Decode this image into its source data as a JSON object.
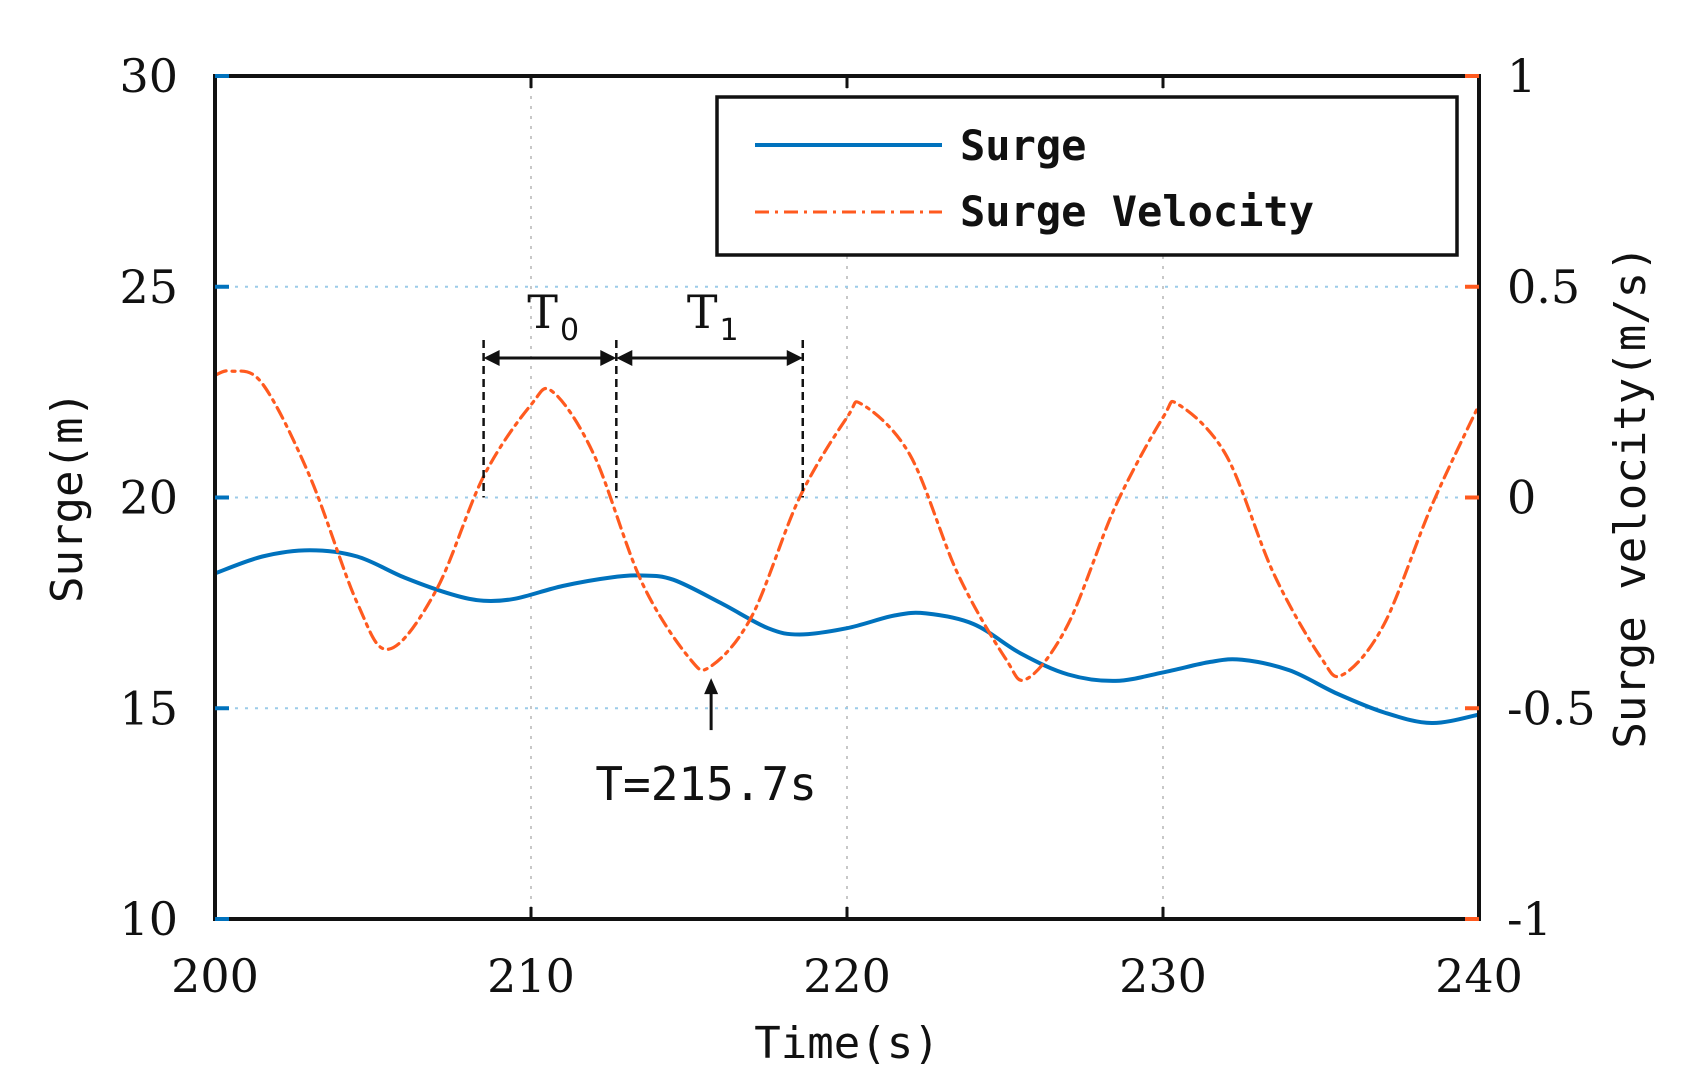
{
  "chart_data": {
    "type": "line",
    "title": "",
    "xlabel": "Time(s)",
    "ylabel_left": "Surge(m)",
    "ylabel_right": "Surge velocity(m/s)",
    "xlim": [
      200,
      240
    ],
    "ylim_left": [
      10,
      30
    ],
    "ylim_right": [
      -1,
      1
    ],
    "x_ticks": [
      "200",
      "210",
      "220",
      "230",
      "240"
    ],
    "y_ticks_left": [
      "10",
      "15",
      "20",
      "25",
      "30"
    ],
    "y_ticks_right": [
      "-1",
      "-0.5",
      "0",
      "0.5",
      "1"
    ],
    "grid": true,
    "legend_position": "top-right",
    "series": [
      {
        "name": "Surge",
        "axis": "left",
        "color": "#0072BD",
        "style": "solid",
        "x": [
          200,
          201.5,
          203,
          204.5,
          206,
          207.5,
          208.5,
          209.5,
          211,
          212.5,
          213.5,
          214.5,
          216,
          217.5,
          218.5,
          220,
          221.5,
          222.5,
          224,
          225.5,
          227,
          228.5,
          230,
          231.5,
          232.5,
          234,
          235.5,
          237,
          238.5,
          240
        ],
        "values": [
          18.2,
          18.6,
          18.75,
          18.6,
          18.1,
          17.7,
          17.55,
          17.6,
          17.9,
          18.1,
          18.15,
          18.05,
          17.5,
          16.9,
          16.75,
          16.9,
          17.2,
          17.25,
          17.0,
          16.3,
          15.8,
          15.65,
          15.85,
          16.1,
          16.15,
          15.9,
          15.35,
          14.9,
          14.65,
          14.85
        ]
      },
      {
        "name": "Surge Velocity",
        "axis": "right",
        "color": "#FF5A1F",
        "style": "dash-dot",
        "x": [
          200,
          200.5,
          201.5,
          203,
          204.5,
          205.5,
          207,
          208.5,
          210,
          210.7,
          212,
          213.5,
          215,
          215.7,
          217,
          218.5,
          220,
          220.5,
          222,
          223.5,
          225,
          225.7,
          227,
          228.5,
          230,
          230.5,
          232,
          233.5,
          235,
          235.7,
          237,
          238.5,
          240
        ],
        "values": [
          0.29,
          0.3,
          0.27,
          0.05,
          -0.25,
          -0.36,
          -0.22,
          0.05,
          0.22,
          0.25,
          0.1,
          -0.2,
          -0.38,
          -0.4,
          -0.28,
          0.0,
          0.19,
          0.22,
          0.1,
          -0.18,
          -0.38,
          -0.43,
          -0.3,
          -0.02,
          0.19,
          0.22,
          0.1,
          -0.18,
          -0.38,
          -0.42,
          -0.3,
          -0.02,
          0.22
        ]
      }
    ],
    "annotations": {
      "t0_label": "T",
      "t0_sub": "0",
      "t1_label": "T",
      "t1_sub": "1",
      "marker_label": "T=215.7s",
      "t0_start": 208.5,
      "t0_end": 212.7,
      "t1_end": 218.6,
      "marker_x": 215.7,
      "marker_y_right": -0.4
    }
  }
}
